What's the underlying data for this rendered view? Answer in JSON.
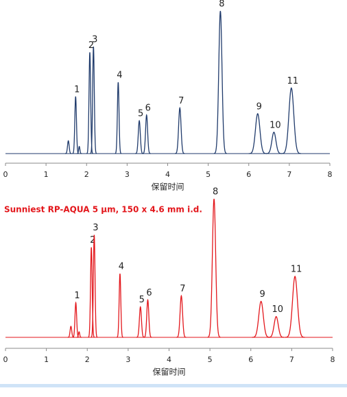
{
  "chart_data": [
    {
      "type": "chromatogram",
      "color": "#1f3a6b",
      "xlim": [
        0,
        8
      ],
      "xticks": [
        0,
        1,
        2,
        3,
        4,
        5,
        6,
        7,
        8
      ],
      "ylim": [
        0,
        100
      ],
      "xlabel": "保留时间",
      "peaks": {
        "labels": [
          null,
          "1",
          null,
          "2",
          "3",
          "4",
          "5",
          "6",
          "7",
          "8",
          "9",
          "10",
          "11"
        ],
        "x": [
          1.55,
          1.73,
          1.82,
          2.08,
          2.17,
          2.78,
          3.3,
          3.48,
          4.3,
          5.3,
          6.22,
          6.62,
          7.05
        ],
        "height": [
          9,
          40,
          5,
          71,
          75,
          50,
          23,
          27,
          32,
          100,
          28,
          15,
          46
        ],
        "width": [
          0.02,
          0.02,
          0.015,
          0.02,
          0.02,
          0.02,
          0.025,
          0.025,
          0.03,
          0.04,
          0.055,
          0.05,
          0.06
        ]
      }
    },
    {
      "type": "chromatogram",
      "color": "#e3161b",
      "xlim": [
        0,
        8
      ],
      "xticks": [
        0,
        1,
        2,
        3,
        4,
        5,
        6,
        7,
        8
      ],
      "ylim": [
        0,
        100
      ],
      "xlabel": "保留时间",
      "subtitle": "Sunniest RP-AQUA 5 μm, 150 x 4.6 mm i.d.",
      "peaks": {
        "labels": [
          null,
          "1",
          null,
          "2",
          "3",
          "4",
          "5",
          "6",
          "7",
          "8",
          "9",
          "10",
          "11"
        ],
        "x": [
          1.6,
          1.72,
          1.8,
          2.1,
          2.17,
          2.8,
          3.3,
          3.48,
          4.3,
          5.1,
          6.25,
          6.62,
          7.08
        ],
        "height": [
          8,
          25,
          4,
          65,
          74,
          46,
          22,
          27,
          30,
          100,
          26,
          15,
          44
        ],
        "width": [
          0.02,
          0.02,
          0.015,
          0.02,
          0.02,
          0.02,
          0.025,
          0.025,
          0.03,
          0.04,
          0.055,
          0.05,
          0.06
        ]
      }
    }
  ]
}
